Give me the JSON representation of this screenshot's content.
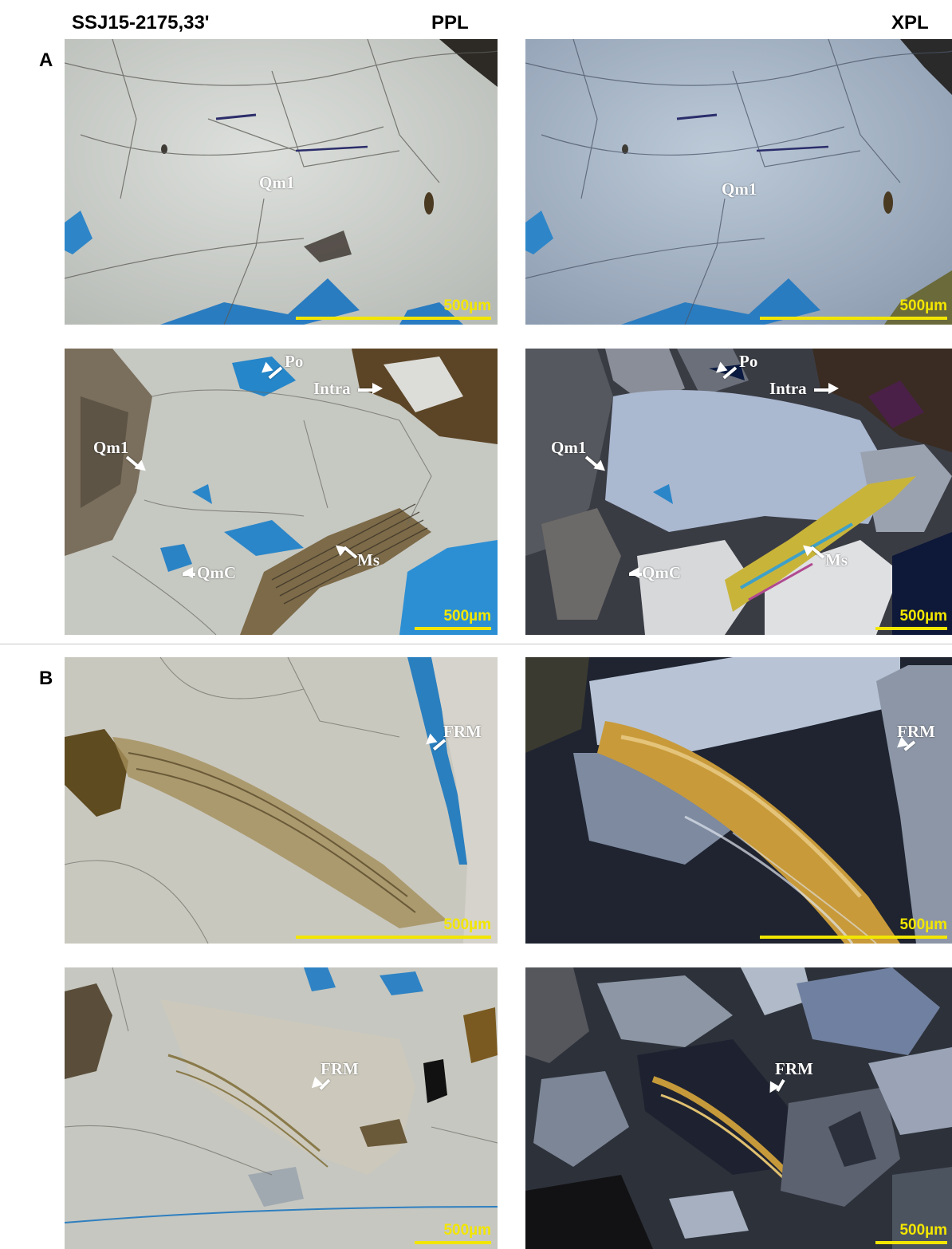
{
  "header": {
    "sample_id": "SSJ15-2175,33'",
    "ppl": "PPL",
    "xpl": "XPL"
  },
  "sections": {
    "a": "A",
    "b": "B"
  },
  "scale_label": "500µm",
  "colors": {
    "scale_bar": "#f2e600",
    "label": "#ffffff",
    "pore_blue": "#1f7fc0"
  },
  "panels": {
    "a_top_ppl": {
      "labels": {
        "qm1": "Qm1"
      }
    },
    "a_top_xpl": {
      "labels": {
        "qm1": "Qm1"
      }
    },
    "a_bottom_ppl": {
      "labels": {
        "po": "Po",
        "intra": "Intra",
        "qm1": "Qm1",
        "qmc": "QmC",
        "ms": "Ms"
      }
    },
    "a_bottom_xpl": {
      "labels": {
        "po": "Po",
        "intra": "Intra",
        "qm1": "Qm1",
        "qmc": "QmC",
        "ms": "Ms"
      }
    },
    "b_top_ppl": {
      "labels": {
        "frm": "FRM"
      }
    },
    "b_top_xpl": {
      "labels": {
        "frm": "FRM"
      }
    },
    "b_bottom_ppl": {
      "labels": {
        "frm": "FRM"
      }
    },
    "b_bottom_xpl": {
      "labels": {
        "frm": "FRM"
      }
    }
  }
}
